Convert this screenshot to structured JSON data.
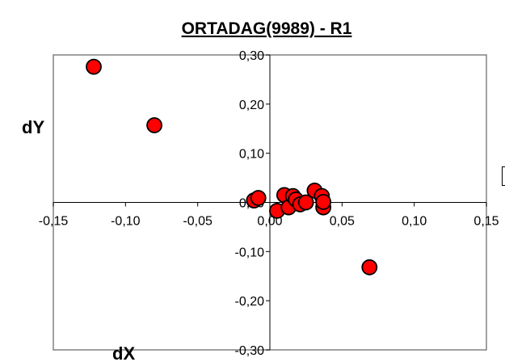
{
  "chart_data": {
    "type": "scatter",
    "title": "ORTADAG(9989) - R1",
    "xlabel": "dX",
    "ylabel": "dY",
    "xlim": [
      -0.15,
      0.15
    ],
    "ylim": [
      -0.3,
      0.3
    ],
    "x_ticks": [
      "-0,15",
      "-0,10",
      "-0,05",
      "0,00",
      "0,05",
      "0,10",
      "0,15"
    ],
    "y_ticks": [
      "-0,30",
      "-0,20",
      "-0,10",
      "0,00",
      "0,10",
      "0,20",
      "0,30"
    ],
    "x_tick_values": [
      -0.15,
      -0.1,
      -0.05,
      0.0,
      0.05,
      0.1,
      0.15
    ],
    "y_tick_values": [
      -0.3,
      -0.2,
      -0.1,
      0.0,
      0.1,
      0.2,
      0.3
    ],
    "grid": false,
    "marker_color": "#ff0000",
    "marker_edge_color": "#000000",
    "points": [
      {
        "x": -0.122,
        "y": 0.276
      },
      {
        "x": -0.08,
        "y": 0.157
      },
      {
        "x": -0.011,
        "y": 0.004
      },
      {
        "x": -0.008,
        "y": 0.009
      },
      {
        "x": 0.005,
        "y": -0.017
      },
      {
        "x": 0.01,
        "y": 0.015
      },
      {
        "x": 0.013,
        "y": -0.01
      },
      {
        "x": 0.016,
        "y": 0.013
      },
      {
        "x": 0.018,
        "y": 0.006
      },
      {
        "x": 0.021,
        "y": -0.004
      },
      {
        "x": 0.025,
        "y": 0.0
      },
      {
        "x": 0.031,
        "y": 0.024
      },
      {
        "x": 0.036,
        "y": 0.013
      },
      {
        "x": 0.037,
        "y": -0.01
      },
      {
        "x": 0.037,
        "y": 0.001
      },
      {
        "x": 0.069,
        "y": -0.132
      }
    ]
  }
}
